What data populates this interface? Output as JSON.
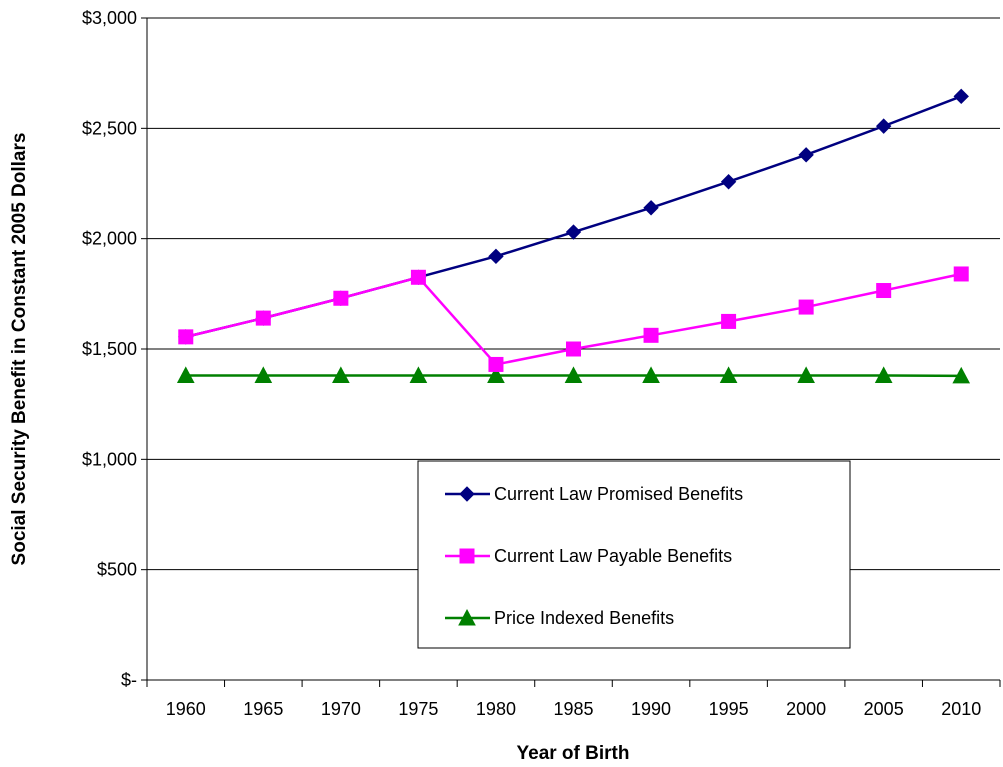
{
  "chart_data": {
    "type": "line",
    "title": "",
    "xlabel": "Year of Birth",
    "ylabel": "Social Security Benefit in Constant 2005 Dollars",
    "x": [
      1960,
      1965,
      1970,
      1975,
      1980,
      1985,
      1990,
      1995,
      2000,
      2005,
      2010
    ],
    "x_tick_labels": [
      "1960",
      "1965",
      "1970",
      "1975",
      "1980",
      "1985",
      "1990",
      "1995",
      "2000",
      "2005",
      "2010"
    ],
    "ylim": [
      0,
      3000
    ],
    "y_ticks": [
      0,
      500,
      1000,
      1500,
      2000,
      2500,
      3000
    ],
    "y_tick_labels": [
      "$-",
      "$500",
      "$1,000",
      "$1,500",
      "$2,000",
      "$2,500",
      "$3,000"
    ],
    "grid": "horizontal",
    "legend_position": "bottom-center",
    "series": [
      {
        "name": "Current Law Promised Benefits",
        "color": "#000080",
        "marker": "diamond",
        "values": [
          1555,
          1640,
          1730,
          1825,
          1920,
          2030,
          2140,
          2258,
          2380,
          2510,
          2645
        ]
      },
      {
        "name": "Current Law Payable Benefits",
        "color": "#FF00FF",
        "marker": "square",
        "values": [
          1555,
          1640,
          1730,
          1825,
          1430,
          1500,
          1562,
          1625,
          1690,
          1765,
          1840
        ]
      },
      {
        "name": "Price Indexed Benefits",
        "color": "#008000",
        "marker": "triangle",
        "values": [
          1380,
          1380,
          1380,
          1380,
          1380,
          1380,
          1380,
          1380,
          1380,
          1380,
          1378
        ]
      }
    ]
  }
}
